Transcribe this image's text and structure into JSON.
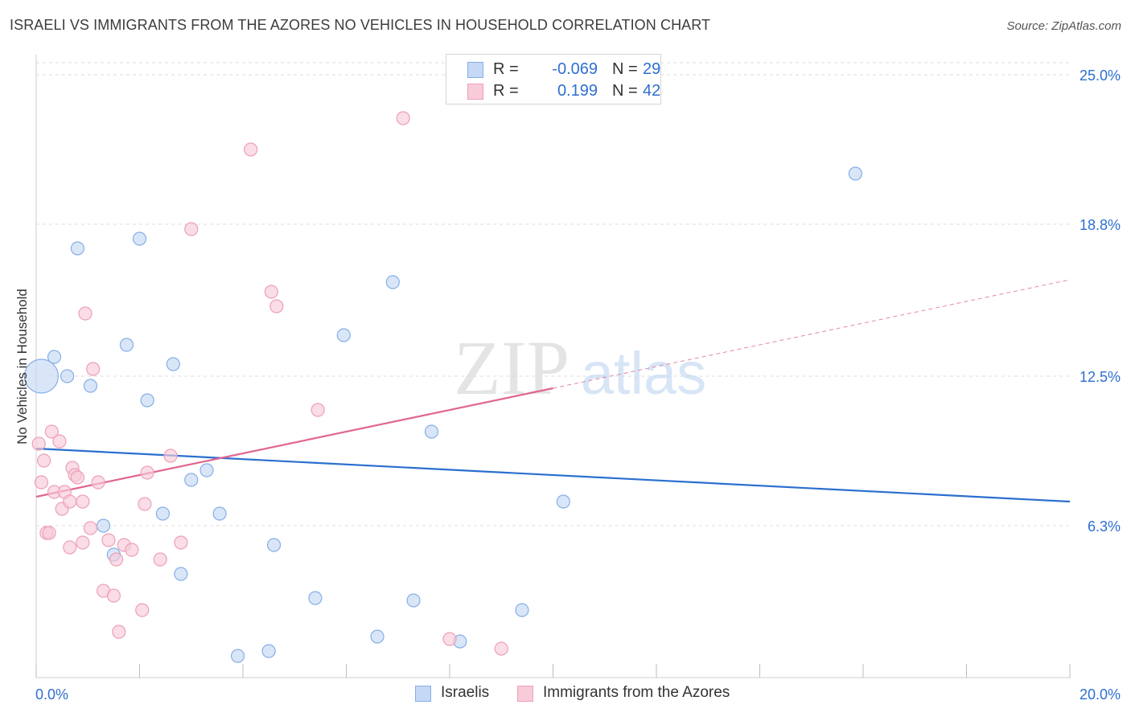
{
  "header": {
    "title": "ISRAELI VS IMMIGRANTS FROM THE AZORES NO VEHICLES IN HOUSEHOLD CORRELATION CHART",
    "source": "Source: ZipAtlas.com"
  },
  "watermark": {
    "zip": "ZIP",
    "atlas": "atlas"
  },
  "legend": {
    "rows": [
      {
        "r_label": "R =",
        "r_value": "-0.069",
        "n_label": "N =",
        "n_value": "29"
      },
      {
        "r_label": "R =",
        "r_value": "0.199",
        "n_label": "N =",
        "n_value": "42"
      }
    ]
  },
  "bottom_legend": {
    "israelis": "Israelis",
    "azores": "Immigrants from the Azores"
  },
  "colors": {
    "israelis_fill": "#c5d8f5",
    "israelis_stroke": "#86aee6",
    "israelis_line": "#2b6fcf",
    "azores_fill": "#f8cbd8",
    "azores_stroke": "#ee9fb7",
    "azores_line": "#e0668f",
    "axis_label": "#2f6fd0",
    "grid": "#dcdcdc"
  },
  "chart_data": {
    "type": "scatter",
    "title": "ISRAELI VS IMMIGRANTS FROM THE AZORES NO VEHICLES IN HOUSEHOLD CORRELATION CHART",
    "xlabel": "",
    "ylabel": "No Vehicles in Household",
    "xlim": [
      0,
      20
    ],
    "ylim": [
      0,
      25.5
    ],
    "x_tick_labels": [
      "0.0%",
      "20.0%"
    ],
    "y_ticks": [
      6.3,
      12.5,
      18.8,
      25.0
    ],
    "y_tick_labels": [
      "6.3%",
      "12.5%",
      "18.8%",
      "25.0%"
    ],
    "grid": true,
    "legend_position": "top-center",
    "series": [
      {
        "name": "Israelis",
        "r": -0.069,
        "n": 29,
        "trend": {
          "x": [
            0,
            20
          ],
          "y": [
            9.5,
            7.3
          ],
          "dashed_from": null
        },
        "points": [
          {
            "x": 0.1,
            "y": 12.5,
            "size": "large"
          },
          {
            "x": 0.35,
            "y": 13.3
          },
          {
            "x": 0.6,
            "y": 12.5
          },
          {
            "x": 0.8,
            "y": 17.8
          },
          {
            "x": 1.05,
            "y": 12.1
          },
          {
            "x": 1.3,
            "y": 6.3
          },
          {
            "x": 1.5,
            "y": 5.1
          },
          {
            "x": 1.75,
            "y": 13.8
          },
          {
            "x": 2.0,
            "y": 18.2
          },
          {
            "x": 2.15,
            "y": 11.5
          },
          {
            "x": 2.45,
            "y": 6.8
          },
          {
            "x": 2.65,
            "y": 13.0
          },
          {
            "x": 2.8,
            "y": 4.3
          },
          {
            "x": 3.0,
            "y": 8.2
          },
          {
            "x": 3.3,
            "y": 8.6
          },
          {
            "x": 3.55,
            "y": 6.8
          },
          {
            "x": 3.9,
            "y": 0.9
          },
          {
            "x": 4.5,
            "y": 1.1
          },
          {
            "x": 4.6,
            "y": 5.5
          },
          {
            "x": 5.4,
            "y": 3.3
          },
          {
            "x": 5.95,
            "y": 14.2
          },
          {
            "x": 6.6,
            "y": 1.7
          },
          {
            "x": 6.9,
            "y": 16.4
          },
          {
            "x": 7.3,
            "y": 3.2
          },
          {
            "x": 7.65,
            "y": 10.2
          },
          {
            "x": 8.2,
            "y": 1.5
          },
          {
            "x": 9.4,
            "y": 2.8
          },
          {
            "x": 10.2,
            "y": 7.3
          },
          {
            "x": 15.85,
            "y": 20.9
          }
        ]
      },
      {
        "name": "Immigrants from the Azores",
        "r": 0.199,
        "n": 42,
        "trend": {
          "x": [
            0,
            20
          ],
          "y": [
            7.5,
            16.5
          ],
          "dashed_from": 10.0
        },
        "points": [
          {
            "x": 0.05,
            "y": 9.7
          },
          {
            "x": 0.1,
            "y": 8.1
          },
          {
            "x": 0.15,
            "y": 9.0
          },
          {
            "x": 0.2,
            "y": 6.0
          },
          {
            "x": 0.25,
            "y": 6.0
          },
          {
            "x": 0.3,
            "y": 10.2
          },
          {
            "x": 0.35,
            "y": 7.7
          },
          {
            "x": 0.45,
            "y": 9.8
          },
          {
            "x": 0.5,
            "y": 7.0
          },
          {
            "x": 0.55,
            "y": 7.7
          },
          {
            "x": 0.65,
            "y": 7.3
          },
          {
            "x": 0.65,
            "y": 5.4
          },
          {
            "x": 0.7,
            "y": 8.7
          },
          {
            "x": 0.75,
            "y": 8.4
          },
          {
            "x": 0.8,
            "y": 8.3
          },
          {
            "x": 0.9,
            "y": 5.6
          },
          {
            "x": 0.9,
            "y": 7.3
          },
          {
            "x": 0.95,
            "y": 15.1
          },
          {
            "x": 1.05,
            "y": 6.2
          },
          {
            "x": 1.1,
            "y": 12.8
          },
          {
            "x": 1.2,
            "y": 8.1
          },
          {
            "x": 1.3,
            "y": 3.6
          },
          {
            "x": 1.4,
            "y": 5.7
          },
          {
            "x": 1.5,
            "y": 3.4
          },
          {
            "x": 1.55,
            "y": 4.9
          },
          {
            "x": 1.6,
            "y": 1.9
          },
          {
            "x": 1.7,
            "y": 5.5
          },
          {
            "x": 1.85,
            "y": 5.3
          },
          {
            "x": 2.05,
            "y": 2.8
          },
          {
            "x": 2.1,
            "y": 7.2
          },
          {
            "x": 2.15,
            "y": 8.5
          },
          {
            "x": 2.4,
            "y": 4.9
          },
          {
            "x": 2.6,
            "y": 9.2
          },
          {
            "x": 2.8,
            "y": 5.6
          },
          {
            "x": 3.0,
            "y": 18.6
          },
          {
            "x": 4.15,
            "y": 21.9
          },
          {
            "x": 4.55,
            "y": 16.0
          },
          {
            "x": 4.65,
            "y": 15.4
          },
          {
            "x": 5.45,
            "y": 11.1
          },
          {
            "x": 7.1,
            "y": 23.2
          },
          {
            "x": 8.0,
            "y": 1.6
          },
          {
            "x": 9.0,
            "y": 1.2
          }
        ]
      }
    ]
  }
}
